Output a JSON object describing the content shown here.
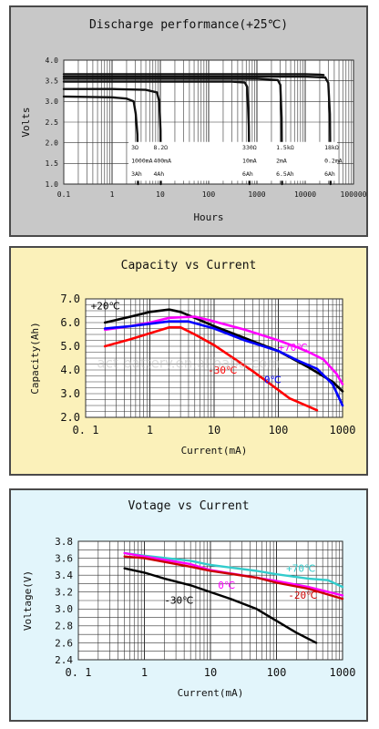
{
  "chart_data": [
    {
      "type": "line",
      "title": "Discharge performance(+25℃)",
      "xlabel": "Hours",
      "ylabel": "Volts",
      "xscale": "log",
      "xlim": [
        0.1,
        100000
      ],
      "ylim": [
        1.0,
        4.0
      ],
      "x_tick_labels": [
        "0.1",
        "1",
        "10",
        "100",
        "1000",
        "10000",
        "100000"
      ],
      "x_ticks": [
        0.1,
        1,
        10,
        100,
        1000,
        10000,
        100000
      ],
      "y_tick_labels": [
        "1.0",
        "1.5",
        "2.0",
        "2.5",
        "3.0",
        "3.5",
        "4.0"
      ],
      "y_ticks": [
        1.0,
        1.5,
        2.0,
        2.5,
        3.0,
        3.5,
        4.0
      ],
      "grid": true,
      "series": [
        {
          "color": "#111111",
          "x": [
            0.1,
            1,
            2,
            2.8,
            3.1,
            3.35,
            3.45
          ],
          "y": [
            3.12,
            3.1,
            3.07,
            3.0,
            2.7,
            2.2,
            1.0
          ]
        },
        {
          "color": "#111111",
          "x": [
            0.1,
            1,
            5,
            8.5,
            9.5,
            10.1,
            10.2
          ],
          "y": [
            3.3,
            3.3,
            3.28,
            3.22,
            3.0,
            2.3,
            1.0
          ]
        },
        {
          "color": "#111111",
          "x": [
            0.1,
            10,
            300,
            560,
            630,
            680,
            700
          ],
          "y": [
            3.48,
            3.48,
            3.48,
            3.46,
            3.35,
            2.4,
            1.0
          ]
        },
        {
          "color": "#111111",
          "x": [
            0.1,
            10,
            1000,
            2700,
            3050,
            3250,
            3320
          ],
          "y": [
            3.55,
            3.55,
            3.55,
            3.52,
            3.4,
            2.6,
            1.0
          ]
        },
        {
          "color": "#111111",
          "x": [
            0.1,
            100,
            10000,
            26000,
            30000,
            32500,
            33500
          ],
          "y": [
            3.6,
            3.6,
            3.6,
            3.58,
            3.45,
            2.7,
            1.0
          ]
        },
        {
          "color": "#111111",
          "x": [
            0.1,
            100,
            10000,
            20000,
            24000
          ],
          "y": [
            3.66,
            3.66,
            3.66,
            3.65,
            3.64
          ]
        }
      ],
      "legend_table": {
        "rows": [
          [
            "3Ω",
            "8.2Ω",
            "330Ω",
            "1.5kΩ",
            "18kΩ"
          ],
          [
            "1000mA",
            "400mA",
            "10mA",
            "2mA",
            "0.2mA"
          ],
          [
            "3Ah",
            "4Ah",
            "6Ah",
            "6.5Ah",
            "6Ah"
          ]
        ]
      }
    },
    {
      "type": "line",
      "title": "Capacity vs Current",
      "xlabel": "Current(mA)",
      "ylabel": "Capacity(Ah)",
      "xscale": "log",
      "xlim": [
        0.1,
        1000
      ],
      "ylim": [
        2.0,
        7.0
      ],
      "x_tick_labels": [
        "0. 1",
        "1",
        "10",
        "100",
        "1000"
      ],
      "x_ticks": [
        0.1,
        1,
        10,
        100,
        1000
      ],
      "y_tick_labels": [
        "2.0",
        "3.0",
        "4.0",
        "5.0",
        "6.0",
        "7.0"
      ],
      "y_ticks": [
        2.0,
        3.0,
        4.0,
        5.0,
        6.0,
        7.0
      ],
      "grid": true,
      "series": [
        {
          "name": "+20℃",
          "color": "#000000",
          "x": [
            0.2,
            0.5,
            1,
            2,
            3,
            5,
            10,
            30,
            100,
            300,
            700,
            1000
          ],
          "y": [
            6.0,
            6.25,
            6.45,
            6.55,
            6.45,
            6.2,
            5.85,
            5.35,
            4.8,
            4.1,
            3.5,
            3.1
          ]
        },
        {
          "name": "+70℃",
          "color": "#ff00ff",
          "x": [
            0.2,
            0.5,
            1,
            2,
            5,
            10,
            30,
            100,
            200,
            300,
            500,
            800,
            1000
          ],
          "y": [
            5.7,
            5.85,
            6.0,
            6.2,
            6.25,
            6.05,
            5.7,
            5.25,
            4.95,
            4.75,
            4.45,
            3.85,
            3.4
          ]
        },
        {
          "name": "0℃",
          "color": "#0000ff",
          "x": [
            0.2,
            0.5,
            1,
            2,
            4,
            10,
            30,
            100,
            200,
            400,
            700,
            1000
          ],
          "y": [
            5.75,
            5.85,
            5.95,
            6.05,
            6.05,
            5.75,
            5.25,
            4.8,
            4.4,
            4.05,
            3.4,
            2.5
          ]
        },
        {
          "name": "-30℃",
          "color": "#ff0000",
          "x": [
            0.2,
            0.5,
            1,
            2,
            3,
            5,
            10,
            20,
            40,
            80,
            150,
            300,
            400
          ],
          "y": [
            5.0,
            5.3,
            5.55,
            5.8,
            5.8,
            5.5,
            5.05,
            4.5,
            3.95,
            3.35,
            2.8,
            2.45,
            2.3
          ]
        }
      ]
    },
    {
      "type": "line",
      "title": "Votage vs Current",
      "xlabel": "Current(mA)",
      "ylabel": "Voltage(V)",
      "xscale": "log",
      "xlim": [
        0.1,
        1000
      ],
      "ylim": [
        2.4,
        3.8
      ],
      "x_tick_labels": [
        "0. 1",
        "1",
        "10",
        "100",
        "1000"
      ],
      "x_ticks": [
        0.1,
        1,
        10,
        100,
        1000
      ],
      "y_tick_labels": [
        "2.4",
        "2.6",
        "2.8",
        "3.0",
        "3.2",
        "3.4",
        "3.6",
        "3.8"
      ],
      "y_ticks": [
        2.4,
        2.6,
        2.8,
        3.0,
        3.2,
        3.4,
        3.6,
        3.8
      ],
      "grid": true,
      "series": [
        {
          "name": "+70℃",
          "color": "#33cccc",
          "x": [
            0.5,
            1,
            5,
            10,
            50,
            100,
            300,
            600,
            1000
          ],
          "y": [
            3.66,
            3.63,
            3.57,
            3.52,
            3.45,
            3.41,
            3.36,
            3.34,
            3.26
          ]
        },
        {
          "name": "0℃",
          "color": "#ff00ff",
          "x": [
            0.5,
            1,
            5,
            10,
            50,
            100,
            300,
            1000
          ],
          "y": [
            3.66,
            3.62,
            3.53,
            3.46,
            3.37,
            3.33,
            3.26,
            3.16
          ]
        },
        {
          "name": "-20℃",
          "color": "#cc0000",
          "x": [
            0.5,
            1,
            5,
            10,
            50,
            100,
            300,
            1000
          ],
          "y": [
            3.62,
            3.6,
            3.5,
            3.45,
            3.37,
            3.31,
            3.24,
            3.12
          ]
        },
        {
          "name": "-30℃",
          "color": "#000000",
          "x": [
            0.5,
            1,
            2,
            5,
            10,
            20,
            50,
            100,
            200,
            400
          ],
          "y": [
            3.48,
            3.43,
            3.36,
            3.28,
            3.2,
            3.12,
            3.0,
            2.86,
            2.72,
            2.6
          ]
        }
      ]
    }
  ],
  "watermark": "act-battery.en.alibaba.com"
}
